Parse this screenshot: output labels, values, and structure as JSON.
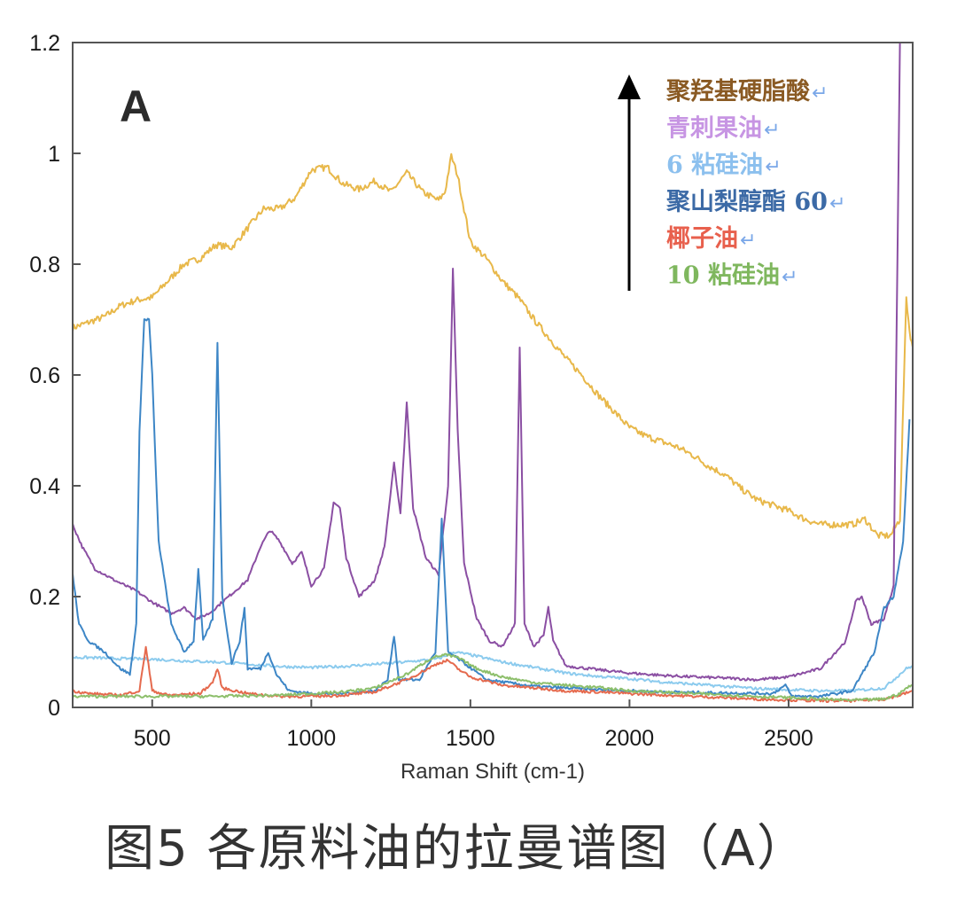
{
  "caption": "图5 各原料油的拉曼谱图（A）",
  "chart_data": {
    "type": "line",
    "panel_label": "A",
    "xlabel": "Raman Shift (cm-1)",
    "ylabel": "",
    "xlim": [
      250,
      2890
    ],
    "ylim": [
      0,
      1.2
    ],
    "xticks": [
      500,
      1000,
      1500,
      2000,
      2500
    ],
    "yticks": [
      0,
      0.2,
      0.4,
      0.6,
      0.8,
      1,
      1.2
    ],
    "ytick_labels": [
      "0",
      "0.2",
      "0.4",
      "0.6",
      "0.8",
      "1",
      "1.2"
    ],
    "grid": false,
    "legend_position": "top-right",
    "legend_mark": "↵",
    "series": [
      {
        "name": "聚羟基硬脂酸",
        "color": "#e8b84a",
        "points": [
          [
            250,
            0.685
          ],
          [
            300,
            0.695
          ],
          [
            350,
            0.705
          ],
          [
            400,
            0.725
          ],
          [
            450,
            0.735
          ],
          [
            500,
            0.74
          ],
          [
            550,
            0.77
          ],
          [
            600,
            0.8
          ],
          [
            650,
            0.81
          ],
          [
            700,
            0.835
          ],
          [
            750,
            0.83
          ],
          [
            800,
            0.865
          ],
          [
            850,
            0.9
          ],
          [
            900,
            0.9
          ],
          [
            950,
            0.92
          ],
          [
            1000,
            0.97
          ],
          [
            1050,
            0.975
          ],
          [
            1100,
            0.945
          ],
          [
            1150,
            0.935
          ],
          [
            1200,
            0.95
          ],
          [
            1250,
            0.93
          ],
          [
            1300,
            0.965
          ],
          [
            1350,
            0.93
          ],
          [
            1400,
            0.915
          ],
          [
            1420,
            0.93
          ],
          [
            1440,
            0.995
          ],
          [
            1460,
            0.96
          ],
          [
            1500,
            0.84
          ],
          [
            1550,
            0.81
          ],
          [
            1600,
            0.77
          ],
          [
            1650,
            0.74
          ],
          [
            1700,
            0.7
          ],
          [
            1750,
            0.665
          ],
          [
            1800,
            0.63
          ],
          [
            1850,
            0.6
          ],
          [
            1900,
            0.565
          ],
          [
            1950,
            0.535
          ],
          [
            2000,
            0.505
          ],
          [
            2050,
            0.49
          ],
          [
            2100,
            0.48
          ],
          [
            2150,
            0.47
          ],
          [
            2200,
            0.455
          ],
          [
            2250,
            0.435
          ],
          [
            2300,
            0.42
          ],
          [
            2350,
            0.395
          ],
          [
            2400,
            0.375
          ],
          [
            2450,
            0.365
          ],
          [
            2500,
            0.355
          ],
          [
            2550,
            0.34
          ],
          [
            2600,
            0.33
          ],
          [
            2650,
            0.33
          ],
          [
            2700,
            0.33
          ],
          [
            2740,
            0.34
          ],
          [
            2780,
            0.31
          ],
          [
            2820,
            0.31
          ],
          [
            2850,
            0.34
          ],
          [
            2870,
            0.74
          ],
          [
            2880,
            0.68
          ],
          [
            2890,
            0.65
          ]
        ]
      },
      {
        "name": "青刺果油",
        "color": "#8b4fa3",
        "points": [
          [
            250,
            0.33
          ],
          [
            280,
            0.29
          ],
          [
            320,
            0.25
          ],
          [
            380,
            0.23
          ],
          [
            450,
            0.21
          ],
          [
            500,
            0.19
          ],
          [
            560,
            0.17
          ],
          [
            600,
            0.18
          ],
          [
            640,
            0.16
          ],
          [
            680,
            0.17
          ],
          [
            720,
            0.19
          ],
          [
            760,
            0.21
          ],
          [
            800,
            0.23
          ],
          [
            840,
            0.29
          ],
          [
            870,
            0.32
          ],
          [
            900,
            0.3
          ],
          [
            940,
            0.26
          ],
          [
            970,
            0.28
          ],
          [
            1000,
            0.22
          ],
          [
            1040,
            0.25
          ],
          [
            1070,
            0.37
          ],
          [
            1090,
            0.36
          ],
          [
            1110,
            0.27
          ],
          [
            1150,
            0.2
          ],
          [
            1200,
            0.23
          ],
          [
            1230,
            0.29
          ],
          [
            1260,
            0.44
          ],
          [
            1280,
            0.35
          ],
          [
            1300,
            0.55
          ],
          [
            1320,
            0.36
          ],
          [
            1360,
            0.27
          ],
          [
            1400,
            0.24
          ],
          [
            1430,
            0.4
          ],
          [
            1445,
            0.79
          ],
          [
            1460,
            0.5
          ],
          [
            1480,
            0.26
          ],
          [
            1520,
            0.16
          ],
          [
            1560,
            0.12
          ],
          [
            1600,
            0.11
          ],
          [
            1640,
            0.15
          ],
          [
            1655,
            0.65
          ],
          [
            1670,
            0.15
          ],
          [
            1700,
            0.11
          ],
          [
            1730,
            0.13
          ],
          [
            1745,
            0.18
          ],
          [
            1760,
            0.12
          ],
          [
            1800,
            0.075
          ],
          [
            1900,
            0.068
          ],
          [
            2000,
            0.062
          ],
          [
            2100,
            0.058
          ],
          [
            2200,
            0.055
          ],
          [
            2300,
            0.053
          ],
          [
            2400,
            0.05
          ],
          [
            2500,
            0.055
          ],
          [
            2600,
            0.07
          ],
          [
            2680,
            0.12
          ],
          [
            2710,
            0.19
          ],
          [
            2730,
            0.2
          ],
          [
            2760,
            0.15
          ],
          [
            2800,
            0.16
          ],
          [
            2830,
            0.22
          ],
          [
            2850,
            1.2
          ]
        ]
      },
      {
        "name": "6 粘硅油",
        "color": "#8ccbee",
        "points": [
          [
            250,
            0.09
          ],
          [
            300,
            0.09
          ],
          [
            400,
            0.088
          ],
          [
            500,
            0.087
          ],
          [
            600,
            0.084
          ],
          [
            700,
            0.082
          ],
          [
            800,
            0.078
          ],
          [
            900,
            0.074
          ],
          [
            1000,
            0.072
          ],
          [
            1100,
            0.074
          ],
          [
            1200,
            0.078
          ],
          [
            1300,
            0.082
          ],
          [
            1400,
            0.088
          ],
          [
            1450,
            0.1
          ],
          [
            1500,
            0.095
          ],
          [
            1600,
            0.082
          ],
          [
            1700,
            0.072
          ],
          [
            1800,
            0.062
          ],
          [
            1900,
            0.056
          ],
          [
            2000,
            0.052
          ],
          [
            2100,
            0.046
          ],
          [
            2200,
            0.042
          ],
          [
            2300,
            0.038
          ],
          [
            2400,
            0.034
          ],
          [
            2500,
            0.032
          ],
          [
            2600,
            0.03
          ],
          [
            2700,
            0.03
          ],
          [
            2800,
            0.035
          ],
          [
            2850,
            0.06
          ],
          [
            2870,
            0.07
          ],
          [
            2890,
            0.075
          ]
        ]
      },
      {
        "name": "聚山梨醇酯 60",
        "color": "#3d86c6",
        "points": [
          [
            250,
            0.24
          ],
          [
            270,
            0.15
          ],
          [
            300,
            0.12
          ],
          [
            350,
            0.1
          ],
          [
            400,
            0.07
          ],
          [
            430,
            0.06
          ],
          [
            450,
            0.15
          ],
          [
            460,
            0.5
          ],
          [
            475,
            0.7
          ],
          [
            490,
            0.7
          ],
          [
            500,
            0.6
          ],
          [
            520,
            0.3
          ],
          [
            560,
            0.15
          ],
          [
            600,
            0.1
          ],
          [
            630,
            0.12
          ],
          [
            645,
            0.25
          ],
          [
            660,
            0.12
          ],
          [
            690,
            0.16
          ],
          [
            705,
            0.66
          ],
          [
            720,
            0.2
          ],
          [
            750,
            0.08
          ],
          [
            775,
            0.12
          ],
          [
            790,
            0.18
          ],
          [
            800,
            0.07
          ],
          [
            840,
            0.07
          ],
          [
            865,
            0.1
          ],
          [
            890,
            0.06
          ],
          [
            930,
            0.03
          ],
          [
            1000,
            0.025
          ],
          [
            1100,
            0.025
          ],
          [
            1200,
            0.03
          ],
          [
            1240,
            0.05
          ],
          [
            1260,
            0.13
          ],
          [
            1275,
            0.05
          ],
          [
            1340,
            0.05
          ],
          [
            1390,
            0.1
          ],
          [
            1410,
            0.34
          ],
          [
            1430,
            0.1
          ],
          [
            1480,
            0.08
          ],
          [
            1550,
            0.05
          ],
          [
            1700,
            0.038
          ],
          [
            1900,
            0.032
          ],
          [
            2100,
            0.028
          ],
          [
            2300,
            0.026
          ],
          [
            2450,
            0.025
          ],
          [
            2490,
            0.04
          ],
          [
            2510,
            0.02
          ],
          [
            2600,
            0.02
          ],
          [
            2700,
            0.03
          ],
          [
            2770,
            0.1
          ],
          [
            2800,
            0.18
          ],
          [
            2830,
            0.2
          ],
          [
            2860,
            0.3
          ],
          [
            2880,
            0.52
          ]
        ]
      },
      {
        "name": "椰子油",
        "color": "#e56a4e",
        "points": [
          [
            250,
            0.03
          ],
          [
            300,
            0.025
          ],
          [
            400,
            0.022
          ],
          [
            460,
            0.03
          ],
          [
            480,
            0.11
          ],
          [
            500,
            0.03
          ],
          [
            550,
            0.022
          ],
          [
            650,
            0.025
          ],
          [
            690,
            0.045
          ],
          [
            705,
            0.07
          ],
          [
            720,
            0.035
          ],
          [
            800,
            0.025
          ],
          [
            900,
            0.02
          ],
          [
            1000,
            0.02
          ],
          [
            1100,
            0.022
          ],
          [
            1200,
            0.028
          ],
          [
            1300,
            0.05
          ],
          [
            1400,
            0.08
          ],
          [
            1430,
            0.085
          ],
          [
            1460,
            0.07
          ],
          [
            1500,
            0.055
          ],
          [
            1600,
            0.04
          ],
          [
            1700,
            0.035
          ],
          [
            1800,
            0.03
          ],
          [
            1900,
            0.028
          ],
          [
            2000,
            0.025
          ],
          [
            2200,
            0.02
          ],
          [
            2400,
            0.015
          ],
          [
            2600,
            0.012
          ],
          [
            2700,
            0.012
          ],
          [
            2800,
            0.015
          ],
          [
            2850,
            0.022
          ],
          [
            2890,
            0.03
          ]
        ]
      },
      {
        "name": "10 粘硅油",
        "color": "#8dbf6b",
        "points": [
          [
            250,
            0.02
          ],
          [
            400,
            0.02
          ],
          [
            500,
            0.02
          ],
          [
            700,
            0.02
          ],
          [
            900,
            0.022
          ],
          [
            1100,
            0.028
          ],
          [
            1200,
            0.035
          ],
          [
            1300,
            0.06
          ],
          [
            1380,
            0.09
          ],
          [
            1420,
            0.095
          ],
          [
            1460,
            0.09
          ],
          [
            1520,
            0.07
          ],
          [
            1600,
            0.055
          ],
          [
            1700,
            0.045
          ],
          [
            1800,
            0.04
          ],
          [
            1900,
            0.036
          ],
          [
            2000,
            0.03
          ],
          [
            2200,
            0.025
          ],
          [
            2400,
            0.02
          ],
          [
            2600,
            0.015
          ],
          [
            2700,
            0.013
          ],
          [
            2800,
            0.015
          ],
          [
            2850,
            0.025
          ],
          [
            2870,
            0.035
          ],
          [
            2890,
            0.04
          ]
        ]
      }
    ],
    "legend_colors": [
      "#8a5a23",
      "#c795e3",
      "#8cc0ee",
      "#3c6aa6",
      "#e8604d",
      "#7fb75e"
    ]
  }
}
